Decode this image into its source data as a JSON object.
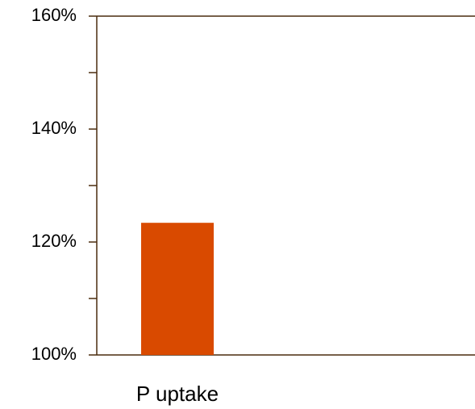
{
  "chart_data": {
    "type": "bar",
    "categories": [
      "P uptake"
    ],
    "values": [
      123.4
    ],
    "color": "#d94a00",
    "ylim": [
      100,
      160
    ],
    "yticks": [
      {
        "value": 100,
        "label": "100%"
      },
      {
        "value": 120,
        "label": "120%"
      },
      {
        "value": 140,
        "label": "140%"
      },
      {
        "value": 160,
        "label": "160%"
      }
    ],
    "minor_yticks": [
      110,
      130,
      150
    ]
  }
}
